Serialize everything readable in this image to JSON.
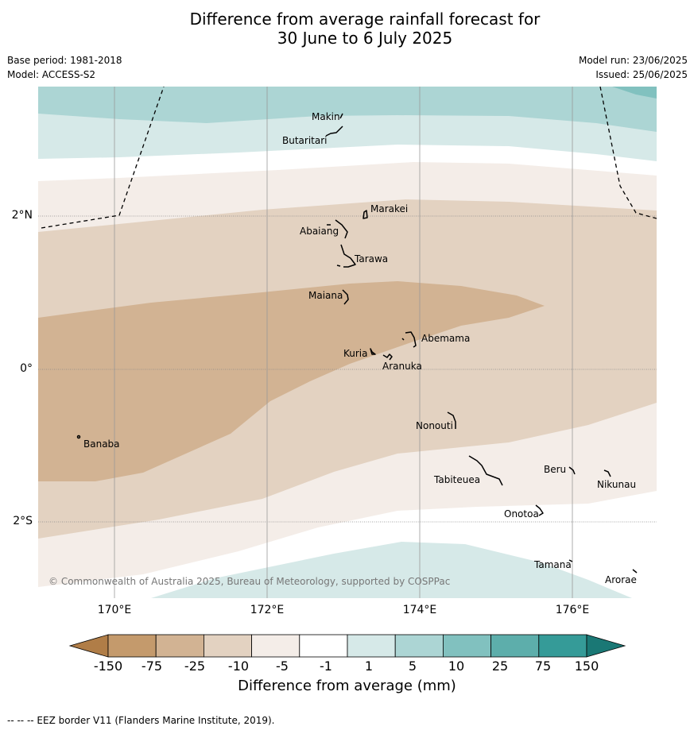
{
  "title_line1": "Difference from average rainfall forecast for",
  "title_line2": "30 June to 6 July 2025",
  "meta": {
    "base_period": "Base period: 1981-2018",
    "model": "Model: ACCESS-S2",
    "model_run": "Model run: 23/06/2025",
    "issued": "Issued: 25/06/2025"
  },
  "axes": {
    "lon_labels": [
      "170°E",
      "172°E",
      "174°E",
      "176°E"
    ],
    "lat_labels": [
      "2°N",
      "0°",
      "2°S"
    ]
  },
  "islands": [
    {
      "name": "Makin"
    },
    {
      "name": "Butaritari"
    },
    {
      "name": "Marakei"
    },
    {
      "name": "Abaiang"
    },
    {
      "name": "Tarawa"
    },
    {
      "name": "Maiana"
    },
    {
      "name": "Abemama"
    },
    {
      "name": "Kuria"
    },
    {
      "name": "Aranuka"
    },
    {
      "name": "Nonouti"
    },
    {
      "name": "Banaba"
    },
    {
      "name": "Beru"
    },
    {
      "name": "Tabiteuea"
    },
    {
      "name": "Nikunau"
    },
    {
      "name": "Onotoa"
    },
    {
      "name": "Tamana"
    },
    {
      "name": "Arorae"
    }
  ],
  "copyright": "© Commonwealth of Australia 2025, Bureau of Meteorology, supported by COSPPac",
  "colorbar": {
    "title": "Difference from average (mm)",
    "tick_labels": [
      "-150",
      "-75",
      "-25",
      "-10",
      "-5",
      "-1",
      "1",
      "5",
      "10",
      "25",
      "75",
      "150"
    ],
    "colors": [
      "#b07d47",
      "#c49a6c",
      "#d2b393",
      "#e3d2c1",
      "#f4ede8",
      "#ffffff",
      "#d6e9e8",
      "#acd5d4",
      "#81c1bf",
      "#5daeab",
      "#359b98",
      "#1a7875"
    ]
  },
  "footnote": "--  --  -- EEZ border V11 (Flanders Marine Institute, 2019)."
}
